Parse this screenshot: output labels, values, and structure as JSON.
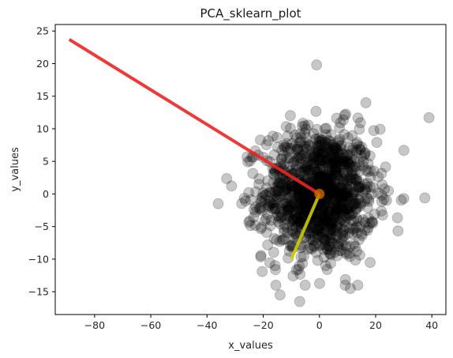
{
  "chart_data": {
    "type": "scatter",
    "title": "PCA_sklearn_plot",
    "xlabel": "x_values",
    "ylabel": "y_values",
    "xlim": [
      -94,
      45
    ],
    "ylim": [
      -18.5,
      26
    ],
    "xticks": [
      -80,
      -60,
      -40,
      -20,
      0,
      20,
      40
    ],
    "yticks": [
      -15,
      -10,
      -5,
      0,
      5,
      10,
      15,
      20,
      25
    ],
    "grid": false,
    "scatter": {
      "color": "#000000",
      "alpha": 0.22,
      "center": [
        0,
        0
      ],
      "std": [
        10.0,
        5.0
      ],
      "approx_point_count": 1200,
      "outliers": [
        [
          -1,
          19.8
        ],
        [
          39,
          11.7
        ],
        [
          -36,
          -1.5
        ],
        [
          37.5,
          -0.6
        ],
        [
          -7,
          -16.5
        ],
        [
          -14,
          -15.5
        ],
        [
          11,
          -14.5
        ]
      ]
    },
    "mean_point": {
      "x": 0,
      "y": 0,
      "color": "#cc6600"
    },
    "components": [
      {
        "color": "#ee2222",
        "from": [
          0,
          0
        ],
        "to": [
          -89,
          23.7
        ]
      },
      {
        "color": "#cccc00",
        "from": [
          0,
          0
        ],
        "to": [
          -10,
          -10
        ]
      }
    ],
    "colors": {
      "axis": "#000000",
      "text": "#262626"
    }
  }
}
